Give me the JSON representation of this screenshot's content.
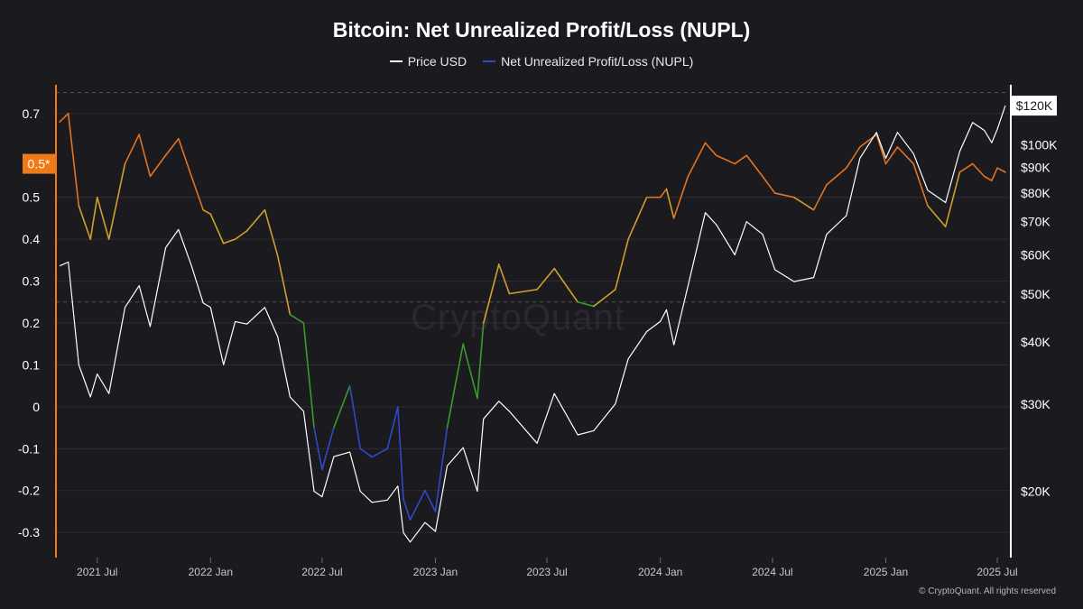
{
  "chart_data": {
    "type": "line",
    "title": "Bitcoin: Net Unrealized Profit/Loss (NUPL)",
    "legend_position": "top-center",
    "grid": true,
    "series": [
      {
        "name": "Price USD",
        "color": "#ffffff",
        "axis": "right",
        "x": [
          "2021-05-01",
          "2021-05-15",
          "2021-06-01",
          "2021-06-20",
          "2021-07-01",
          "2021-07-20",
          "2021-08-15",
          "2021-09-07",
          "2021-09-25",
          "2021-10-20",
          "2021-11-10",
          "2021-12-01",
          "2021-12-20",
          "2022-01-01",
          "2022-01-22",
          "2022-02-10",
          "2022-03-01",
          "2022-03-30",
          "2022-04-20",
          "2022-05-10",
          "2022-06-01",
          "2022-06-18",
          "2022-07-01",
          "2022-07-20",
          "2022-08-15",
          "2022-09-01",
          "2022-09-20",
          "2022-10-15",
          "2022-11-01",
          "2022-11-10",
          "2022-11-21",
          "2022-12-15",
          "2023-01-01",
          "2023-01-20",
          "2023-02-15",
          "2023-03-10",
          "2023-03-20",
          "2023-04-14",
          "2023-05-01",
          "2023-06-15",
          "2023-07-13",
          "2023-08-20",
          "2023-09-15",
          "2023-10-20",
          "2023-11-10",
          "2023-12-10",
          "2024-01-01",
          "2024-01-11",
          "2024-01-23",
          "2024-02-15",
          "2024-03-14",
          "2024-04-01",
          "2024-05-01",
          "2024-05-20",
          "2024-06-15",
          "2024-07-05",
          "2024-08-05",
          "2024-09-06",
          "2024-09-27",
          "2024-10-29",
          "2024-11-20",
          "2024-12-17",
          "2025-01-01",
          "2025-01-20",
          "2025-02-15",
          "2025-03-10",
          "2025-04-08",
          "2025-05-01",
          "2025-05-22",
          "2025-06-10",
          "2025-06-22",
          "2025-07-01",
          "2025-07-14"
        ],
        "values": [
          57000,
          58000,
          36000,
          31000,
          34500,
          31500,
          47000,
          52000,
          43000,
          62000,
          67500,
          57000,
          48000,
          47000,
          36000,
          44000,
          43500,
          47000,
          41000,
          31000,
          29000,
          20000,
          19500,
          23500,
          24000,
          20000,
          19000,
          19200,
          20500,
          16500,
          15800,
          17300,
          16600,
          22500,
          24500,
          20000,
          28000,
          30400,
          29000,
          25000,
          31500,
          26000,
          26500,
          30000,
          37000,
          42000,
          44000,
          46500,
          39500,
          52000,
          73000,
          69000,
          60000,
          70000,
          66000,
          56000,
          53000,
          54000,
          66000,
          72000,
          94000,
          106000,
          94000,
          106000,
          96000,
          81000,
          76500,
          97000,
          111000,
          107000,
          101000,
          107500,
          120000
        ]
      },
      {
        "name": "Net Unrealized Profit/Loss (NUPL)",
        "color": "#2f49c9",
        "axis": "left",
        "x": [
          "2021-05-01",
          "2021-05-15",
          "2021-06-01",
          "2021-06-20",
          "2021-07-01",
          "2021-07-20",
          "2021-08-15",
          "2021-09-07",
          "2021-09-25",
          "2021-10-20",
          "2021-11-10",
          "2021-12-01",
          "2021-12-20",
          "2022-01-01",
          "2022-01-22",
          "2022-02-10",
          "2022-03-01",
          "2022-03-30",
          "2022-04-20",
          "2022-05-10",
          "2022-06-01",
          "2022-06-18",
          "2022-07-01",
          "2022-07-20",
          "2022-08-15",
          "2022-09-01",
          "2022-09-20",
          "2022-10-15",
          "2022-11-01",
          "2022-11-10",
          "2022-11-21",
          "2022-12-15",
          "2023-01-01",
          "2023-01-20",
          "2023-02-15",
          "2023-03-10",
          "2023-03-20",
          "2023-04-14",
          "2023-05-01",
          "2023-06-15",
          "2023-07-13",
          "2023-08-20",
          "2023-09-15",
          "2023-10-20",
          "2023-11-10",
          "2023-12-10",
          "2024-01-01",
          "2024-01-11",
          "2024-01-23",
          "2024-02-15",
          "2024-03-14",
          "2024-04-01",
          "2024-05-01",
          "2024-05-20",
          "2024-06-15",
          "2024-07-05",
          "2024-08-05",
          "2024-09-06",
          "2024-09-27",
          "2024-10-29",
          "2024-11-20",
          "2024-12-17",
          "2025-01-01",
          "2025-01-20",
          "2025-02-15",
          "2025-03-10",
          "2025-04-08",
          "2025-05-01",
          "2025-05-22",
          "2025-06-10",
          "2025-06-22",
          "2025-07-01",
          "2025-07-14"
        ],
        "values": [
          0.68,
          0.7,
          0.48,
          0.4,
          0.5,
          0.4,
          0.58,
          0.65,
          0.55,
          0.6,
          0.64,
          0.55,
          0.47,
          0.46,
          0.39,
          0.4,
          0.42,
          0.47,
          0.36,
          0.22,
          0.2,
          -0.05,
          -0.15,
          -0.05,
          0.05,
          -0.1,
          -0.12,
          -0.1,
          0.0,
          -0.22,
          -0.27,
          -0.2,
          -0.25,
          -0.05,
          0.15,
          0.02,
          0.2,
          0.34,
          0.27,
          0.28,
          0.33,
          0.25,
          0.24,
          0.28,
          0.4,
          0.5,
          0.5,
          0.52,
          0.45,
          0.55,
          0.63,
          0.6,
          0.58,
          0.6,
          0.55,
          0.51,
          0.5,
          0.47,
          0.53,
          0.57,
          0.62,
          0.65,
          0.58,
          0.62,
          0.58,
          0.48,
          0.43,
          0.56,
          0.58,
          0.55,
          0.54,
          0.57,
          0.56
        ]
      }
    ],
    "y_left": {
      "ticks": [
        "0.7",
        "0.5",
        "0.4",
        "0.3",
        "0.2",
        "0.1",
        "0",
        "-0.1",
        "-0.2",
        "-0.3"
      ],
      "tick_values": [
        0.7,
        0.5,
        0.4,
        0.3,
        0.2,
        0.1,
        0,
        -0.1,
        -0.2,
        -0.3
      ],
      "ylim": [
        -0.36,
        0.76
      ],
      "highlight_label": "0.5*",
      "highlight_value": 0.58,
      "highlight_color": "#f07a17"
    },
    "y_right": {
      "scale": "log",
      "ticks": [
        "$100K",
        "$90K",
        "$80K",
        "$70K",
        "$60K",
        "$50K",
        "$40K",
        "$30K",
        "$20K"
      ],
      "tick_values": [
        100000,
        90000,
        80000,
        70000,
        60000,
        50000,
        40000,
        30000,
        20000
      ],
      "ylim": [
        14700,
        130000
      ],
      "current_label": "$120K",
      "current_value": 120000
    },
    "x_axis": {
      "ticks": [
        "2021 Jul",
        "2022 Jan",
        "2022 Jul",
        "2023 Jan",
        "2023 Jul",
        "2024 Jan",
        "2024 Jul",
        "2025 Jan",
        "2025 Jul"
      ],
      "tick_dates": [
        "2021-07-01",
        "2022-01-01",
        "2022-07-01",
        "2023-01-01",
        "2023-07-01",
        "2024-01-01",
        "2024-07-01",
        "2025-01-01",
        "2025-07-01"
      ],
      "xlim": [
        "2021-04-25",
        "2025-07-20"
      ]
    },
    "nupl_color_bands": [
      {
        "min": 0.5,
        "color": "#e27322"
      },
      {
        "min": 0.25,
        "color": "#cfa12a"
      },
      {
        "min": 0.0,
        "color": "#3b9b2a"
      },
      {
        "min": -1,
        "color": "#2f49c9"
      }
    ]
  },
  "watermark": "CryptoQuant",
  "copyright": "© CryptoQuant. All rights reserved"
}
